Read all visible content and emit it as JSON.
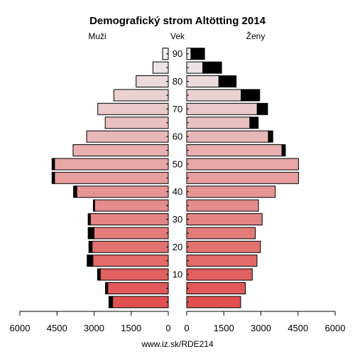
{
  "chart_data": {
    "type": "bar",
    "title": "Demografický strom Altötting 2014",
    "left_header": "Muži",
    "center_header": "Vek",
    "right_header": "Ženy",
    "age_ticks": [
      "90",
      "80",
      "70",
      "60",
      "50",
      "40",
      "30",
      "20",
      "10"
    ],
    "x_ticks_left": [
      "6000",
      "4500",
      "3000",
      "1500",
      "0"
    ],
    "x_ticks_right": [
      "0",
      "1500",
      "3000",
      "4500",
      "6000"
    ],
    "xlim": [
      0,
      6000
    ],
    "footer": "www.iz.sk/RDE214",
    "age_groups": [
      "90+",
      "85-89",
      "80-84",
      "75-79",
      "70-74",
      "65-69",
      "60-64",
      "55-59",
      "50-54",
      "45-49",
      "40-44",
      "35-39",
      "30-34",
      "25-29",
      "20-24",
      "15-19",
      "10-14",
      "5-9",
      "0-4"
    ],
    "male": [
      230,
      620,
      1300,
      2200,
      2850,
      2550,
      3300,
      3850,
      4600,
      4600,
      3700,
      2980,
      3150,
      3000,
      3080,
      3050,
      2750,
      2450,
      2250
    ],
    "male_surplus": [
      0,
      0,
      0,
      0,
      0,
      0,
      0,
      0,
      100,
      100,
      130,
      50,
      90,
      240,
      130,
      230,
      110,
      90,
      150
    ],
    "female": [
      170,
      650,
      1300,
      2200,
      2850,
      2550,
      3300,
      3850,
      4520,
      4520,
      3580,
      2900,
      3050,
      2770,
      2980,
      2840,
      2650,
      2370,
      2180
    ],
    "female_surplus": [
      550,
      760,
      700,
      750,
      420,
      340,
      180,
      140,
      0,
      0,
      0,
      0,
      0,
      0,
      0,
      0,
      0,
      0,
      0
    ],
    "colors": {
      "surplus": "#000000",
      "top_bar": "#ececec",
      "bottom_bar": "#e05050"
    }
  }
}
